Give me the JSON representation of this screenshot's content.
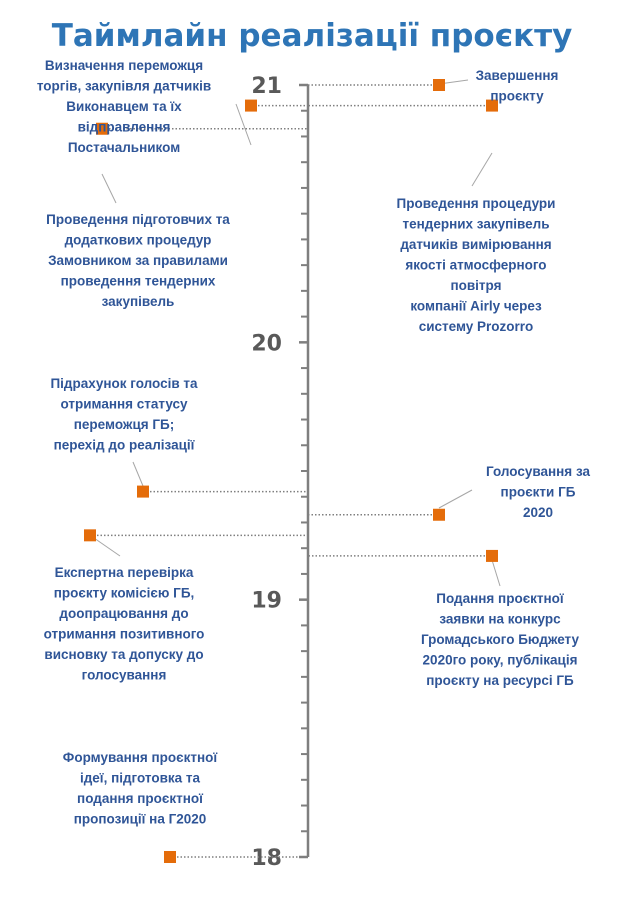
{
  "chart_data": {
    "type": "scatter",
    "title": "Таймлайн реалізації проєкту",
    "ylim": [
      18,
      21
    ],
    "ticks": [
      {
        "value": 18,
        "label": "18"
      },
      {
        "value": 19,
        "label": "19"
      },
      {
        "value": 20,
        "label": "20"
      },
      {
        "value": 21,
        "label": "21"
      }
    ],
    "marker_color": "#e46c0a",
    "label_color": "#2f5597",
    "axis_color": "#7f7f7f",
    "points": [
      {
        "side": "left",
        "y": 18.0,
        "label": [
          "Формування  проєктної",
          "ідеї, підготовка та",
          "подання  проєктної",
          "пропозиції  на Г2020"
        ]
      },
      {
        "side": "left",
        "y": 19.25,
        "label": [
          "Експертна  перевірка",
          "проєкту  комісією ГБ,",
          "доопрацювання  до",
          "отримання  позитивного",
          "висновку  та допуску до",
          "голосування"
        ]
      },
      {
        "side": "left",
        "y": 19.42,
        "label": [
          "Підрахунок  голосів та",
          "отримання  статусу",
          "переможця ГБ;",
          "перехід до реалізації"
        ]
      },
      {
        "side": "left",
        "y": 20.83,
        "label": [
          "Проведення  підготовчих та",
          "додаткових процедур",
          "Замовником  за правилами",
          "проведення  тендерних",
          "закупівель"
        ]
      },
      {
        "side": "left",
        "y": 20.92,
        "label": [
          "Визначення  переможця",
          "торгів, закупівля  датчиків",
          "Виконавцем та їх",
          "відправлення",
          "Постачальником"
        ]
      },
      {
        "side": "right",
        "y": 19.17,
        "label": [
          "Подання  проєктної",
          "заявки  на конкурс",
          "Громадського  Бюджету",
          "2020го року,  публікація",
          "проєкту на ресурсі ГБ"
        ]
      },
      {
        "side": "right",
        "y": 19.33,
        "label": [
          "Голосування  за",
          "проєкти  ГБ",
          "2020"
        ]
      },
      {
        "side": "right",
        "y": 20.92,
        "label": [
          "Проведення  процедури",
          "тендерних  закупівель",
          "датчиків  вимірювання",
          "якості  атмосферного",
          "повітря",
          "компанії  Airly через",
          "систему Prozorro"
        ]
      },
      {
        "side": "right",
        "y": 21.0,
        "label": [
          "Завершення",
          "проєкту"
        ]
      }
    ]
  }
}
